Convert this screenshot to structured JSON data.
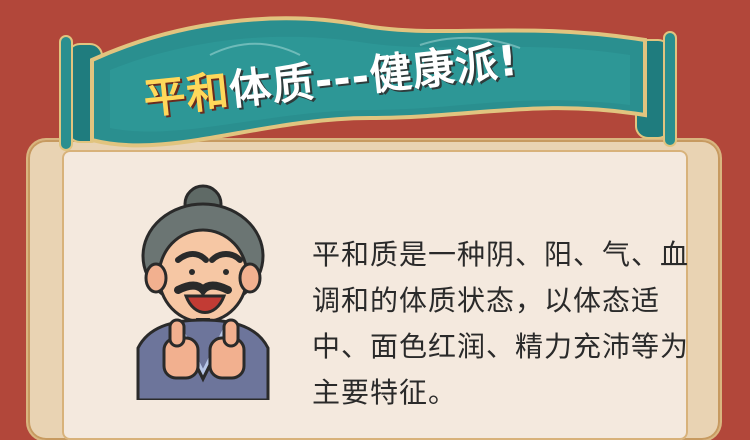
{
  "title": {
    "highlight": "平和",
    "rest": "体质---健康派!"
  },
  "body_text": "平和质是一种阴、阳、气、血调和的体质状态，以体态适中、面色红润、精力充沛等为主要特征。",
  "colors": {
    "background": "#b2473a",
    "banner": "#2a8f8f",
    "card": "#f4e9de",
    "title_highlight": "#ffd85a",
    "title_text": "#ffffff"
  },
  "illustration": {
    "subject": "thumbs-up-elder-character",
    "icon": "character-illustration"
  }
}
